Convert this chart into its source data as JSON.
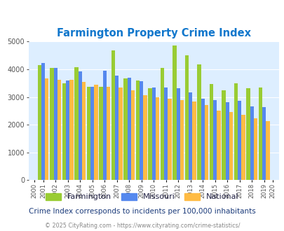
{
  "title": "Farmington Property Crime Index",
  "years": [
    2000,
    2001,
    2002,
    2003,
    2004,
    2005,
    2006,
    2007,
    2008,
    2009,
    2010,
    2011,
    2012,
    2013,
    2014,
    2015,
    2016,
    2017,
    2018,
    2019,
    2020
  ],
  "farmington": [
    null,
    4150,
    4050,
    3500,
    4080,
    3380,
    3380,
    4680,
    3680,
    3600,
    3320,
    4060,
    4850,
    4500,
    4180,
    3480,
    3230,
    3500,
    3310,
    3340,
    null
  ],
  "missouri": [
    null,
    4230,
    4050,
    3600,
    3920,
    3370,
    3960,
    3780,
    3700,
    3580,
    3350,
    3340,
    3330,
    3170,
    2940,
    2890,
    2810,
    2860,
    2660,
    2640,
    null
  ],
  "national": [
    null,
    3680,
    3630,
    3620,
    3540,
    3440,
    3360,
    3340,
    3240,
    3060,
    2980,
    2940,
    2890,
    2830,
    2720,
    2500,
    2460,
    2370,
    2220,
    2130,
    null
  ],
  "farmington_color": "#99cc33",
  "missouri_color": "#5588ee",
  "national_color": "#ffbb44",
  "background_color": "#ddeeff",
  "ylim": [
    0,
    5000
  ],
  "yticks": [
    0,
    1000,
    2000,
    3000,
    4000,
    5000
  ],
  "subtitle": "Crime Index corresponds to incidents per 100,000 inhabitants",
  "footer": "© 2025 CityRating.com - https://www.cityrating.com/crime-statistics/",
  "title_color": "#1177cc",
  "subtitle_color": "#1a3a7a",
  "footer_color": "#888888",
  "legend_label_color": "#222244"
}
